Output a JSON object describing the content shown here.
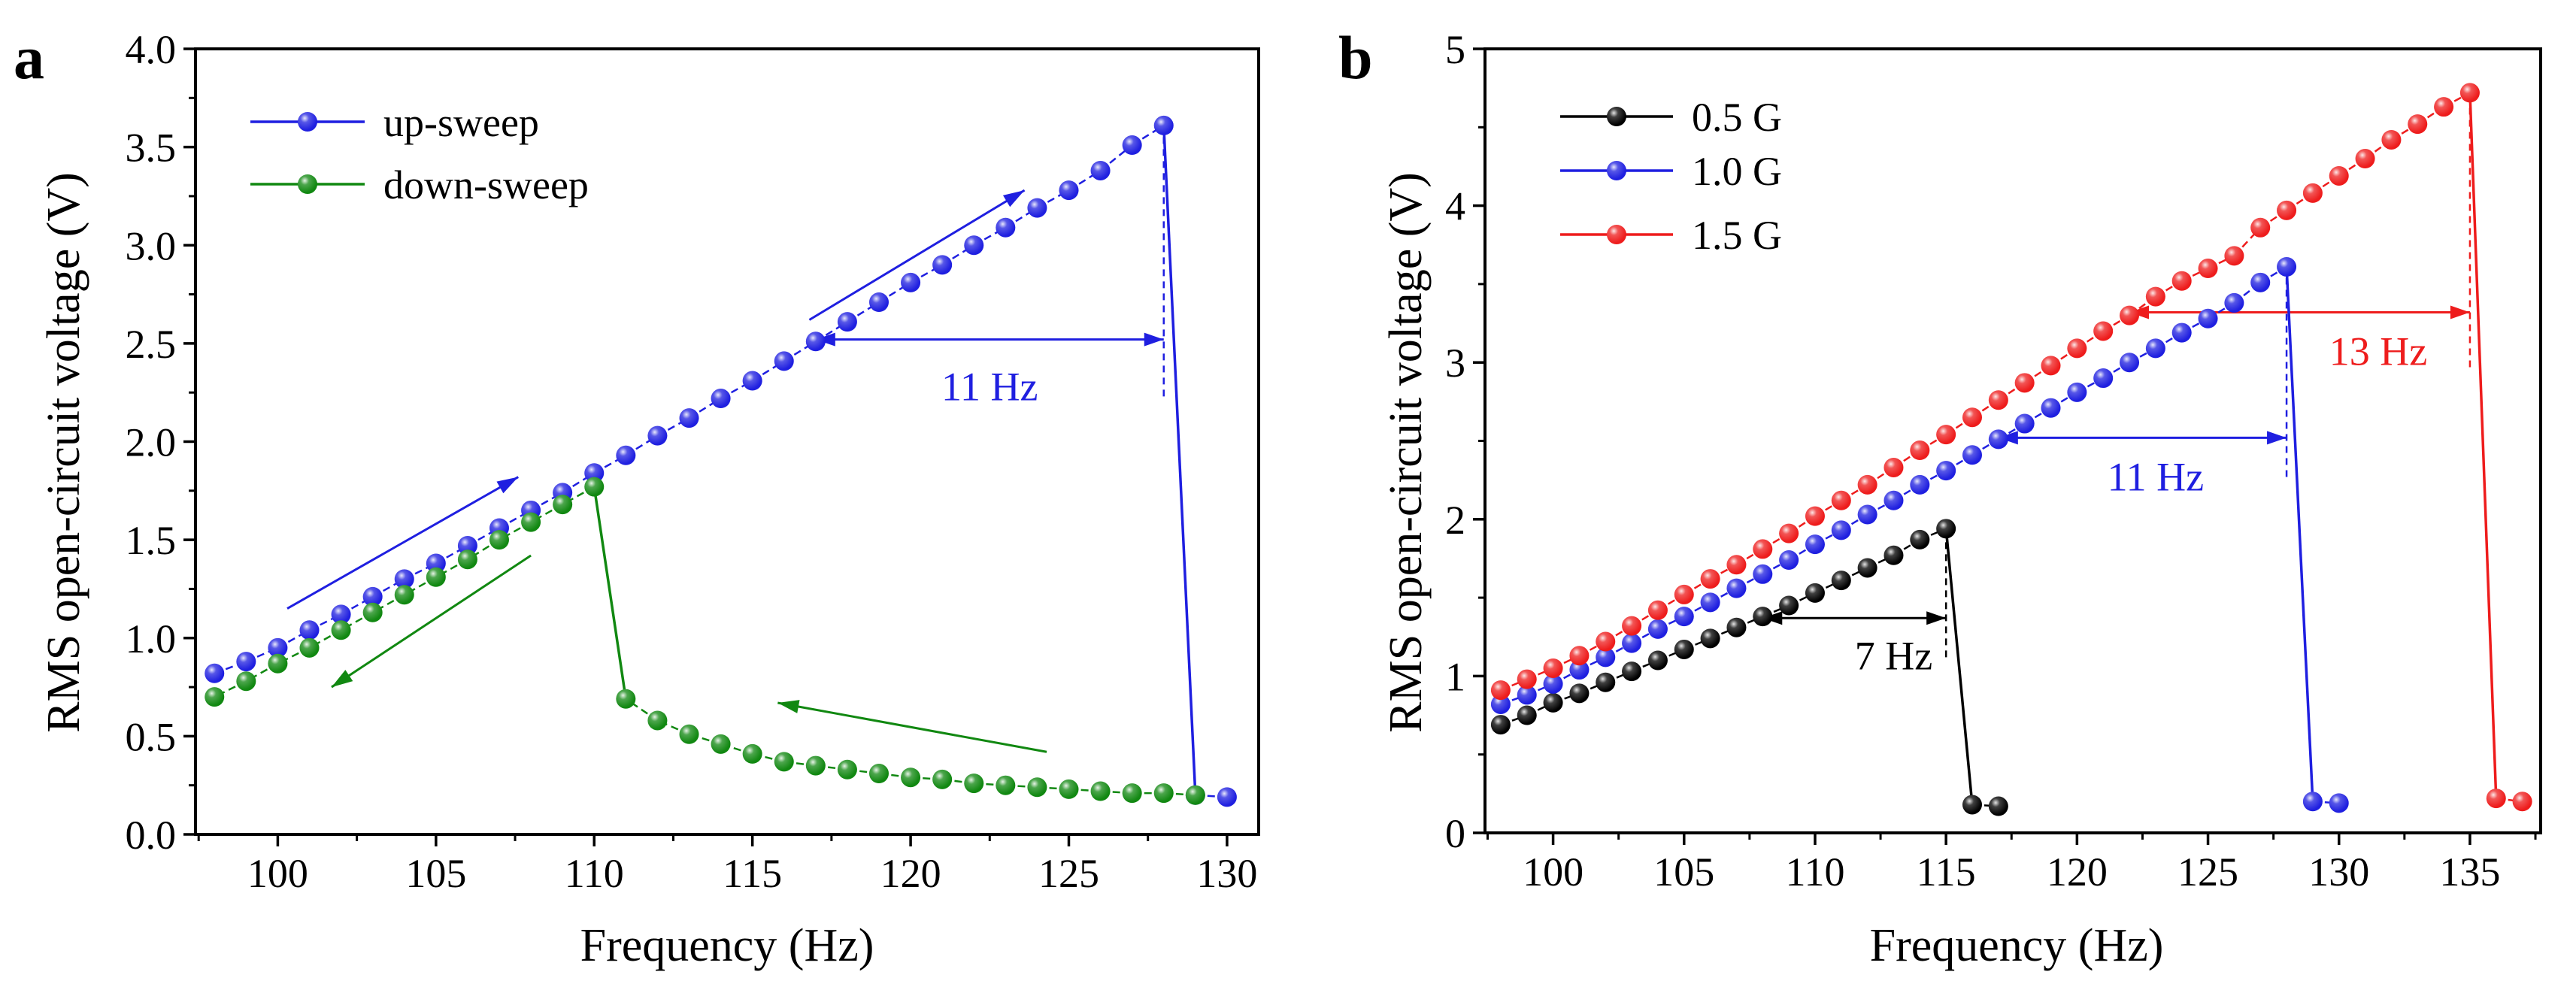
{
  "chart_data": [
    {
      "panel_label": "a",
      "type": "line",
      "title": "",
      "xlabel": "Frequency (Hz)",
      "ylabel": "RMS open-circuit voltage (V)",
      "xlim": [
        97.4,
        131.0
      ],
      "ylim": [
        0.0,
        4.0
      ],
      "xticks": [
        100,
        105,
        110,
        115,
        120,
        125,
        130
      ],
      "yticks": [
        0.0,
        0.5,
        1.0,
        1.5,
        2.0,
        2.5,
        3.0,
        3.5,
        4.0
      ],
      "ytick_labels": [
        "0.0",
        "0.5",
        "1.0",
        "1.5",
        "2.0",
        "2.5",
        "3.0",
        "3.5",
        "4.0"
      ],
      "legend_position": "top-left",
      "series": [
        {
          "name": "up-sweep",
          "color": "#1f1fe0",
          "x": [
            98,
            99,
            100,
            101,
            102,
            103,
            104,
            105,
            106,
            107,
            108,
            109,
            110,
            111,
            112,
            113,
            114,
            115,
            116,
            117,
            118,
            119,
            120,
            121,
            122,
            123,
            124,
            125,
            126,
            127,
            128,
            129,
            130
          ],
          "y": [
            0.82,
            0.88,
            0.95,
            1.04,
            1.12,
            1.21,
            1.3,
            1.38,
            1.47,
            1.56,
            1.65,
            1.74,
            1.84,
            1.93,
            2.03,
            2.12,
            2.22,
            2.31,
            2.41,
            2.51,
            2.61,
            2.71,
            2.81,
            2.9,
            3.0,
            3.09,
            3.19,
            3.28,
            3.38,
            3.51,
            3.61,
            0.2,
            0.19
          ]
        },
        {
          "name": "down-sweep",
          "color": "#118811",
          "x": [
            129,
            128,
            127,
            126,
            125,
            124,
            123,
            122,
            121,
            120,
            119,
            118,
            117,
            116,
            115,
            114,
            113,
            112,
            111,
            110,
            109,
            108,
            107,
            106,
            105,
            104,
            103,
            102,
            101,
            100,
            99,
            98
          ],
          "y": [
            0.2,
            0.21,
            0.21,
            0.22,
            0.23,
            0.24,
            0.25,
            0.26,
            0.28,
            0.29,
            0.31,
            0.33,
            0.35,
            0.37,
            0.41,
            0.46,
            0.51,
            0.58,
            0.69,
            1.77,
            1.68,
            1.59,
            1.5,
            1.4,
            1.31,
            1.22,
            1.13,
            1.04,
            0.95,
            0.87,
            0.78,
            0.7
          ]
        }
      ],
      "annotations": [
        {
          "text": "11 Hz",
          "color": "#1f1fe0",
          "x_from": 117,
          "x_to": 128,
          "y": 2.52,
          "label_x": 122.5,
          "label_y": 2.28,
          "dashed_x": 128,
          "dashed_y": [
            2.23,
            3.6
          ]
        }
      ],
      "arrows": [
        {
          "color": "#1f1fe0",
          "from": [
            100.3,
            1.15
          ],
          "to": [
            107.6,
            1.82
          ]
        },
        {
          "color": "#1f1fe0",
          "from": [
            116.8,
            2.62
          ],
          "to": [
            123.6,
            3.28
          ]
        },
        {
          "color": "#118811",
          "from": [
            108.0,
            1.42
          ],
          "to": [
            101.7,
            0.75
          ]
        },
        {
          "color": "#118811",
          "from": [
            124.3,
            0.42
          ],
          "to": [
            115.8,
            0.67
          ]
        }
      ]
    },
    {
      "panel_label": "b",
      "type": "line",
      "title": "",
      "xlabel": "Frequency (Hz)",
      "ylabel": "RMS open-circuit voltage (V)",
      "xlim": [
        97.4,
        137.7
      ],
      "ylim": [
        0,
        5
      ],
      "xticks": [
        100,
        105,
        110,
        115,
        120,
        125,
        130,
        135
      ],
      "yticks": [
        0,
        1,
        2,
        3,
        4,
        5
      ],
      "ytick_labels": [
        "0",
        "1",
        "2",
        "3",
        "4",
        "5"
      ],
      "legend_position": "top-left",
      "series": [
        {
          "name": "0.5 G",
          "color": "#000000",
          "x": [
            98,
            99,
            100,
            101,
            102,
            103,
            104,
            105,
            106,
            107,
            108,
            109,
            110,
            111,
            112,
            113,
            114,
            115,
            116,
            117
          ],
          "y": [
            0.69,
            0.75,
            0.83,
            0.89,
            0.96,
            1.03,
            1.1,
            1.17,
            1.24,
            1.31,
            1.38,
            1.45,
            1.53,
            1.61,
            1.69,
            1.77,
            1.87,
            1.94,
            0.18,
            0.17
          ]
        },
        {
          "name": "1.0 G",
          "color": "#1f1fe0",
          "x": [
            98,
            99,
            100,
            101,
            102,
            103,
            104,
            105,
            106,
            107,
            108,
            109,
            110,
            111,
            112,
            113,
            114,
            115,
            116,
            117,
            118,
            119,
            120,
            121,
            122,
            123,
            124,
            125,
            126,
            127,
            128,
            129,
            130
          ],
          "y": [
            0.82,
            0.88,
            0.95,
            1.04,
            1.12,
            1.21,
            1.3,
            1.38,
            1.47,
            1.56,
            1.65,
            1.74,
            1.84,
            1.93,
            2.03,
            2.12,
            2.22,
            2.31,
            2.41,
            2.51,
            2.61,
            2.71,
            2.81,
            2.9,
            3.0,
            3.09,
            3.19,
            3.28,
            3.38,
            3.51,
            3.61,
            0.2,
            0.19
          ]
        },
        {
          "name": "1.5 G",
          "color": "#ee1c1c",
          "x": [
            98,
            99,
            100,
            101,
            102,
            103,
            104,
            105,
            106,
            107,
            108,
            109,
            110,
            111,
            112,
            113,
            114,
            115,
            116,
            117,
            118,
            119,
            120,
            121,
            122,
            123,
            124,
            125,
            126,
            127,
            128,
            129,
            130,
            131,
            132,
            133,
            134,
            135,
            136,
            137
          ],
          "y": [
            0.91,
            0.98,
            1.05,
            1.13,
            1.22,
            1.32,
            1.42,
            1.52,
            1.62,
            1.71,
            1.81,
            1.91,
            2.02,
            2.12,
            2.22,
            2.33,
            2.44,
            2.54,
            2.65,
            2.76,
            2.87,
            2.98,
            3.09,
            3.2,
            3.3,
            3.42,
            3.52,
            3.6,
            3.68,
            3.86,
            3.97,
            4.08,
            4.19,
            4.3,
            4.42,
            4.52,
            4.63,
            4.72,
            0.22,
            0.2
          ]
        }
      ],
      "annotations": [
        {
          "text": "7 Hz",
          "color": "#000000",
          "x_from": 108,
          "x_to": 115,
          "y": 1.37,
          "label_x": 113.0,
          "label_y": 1.13,
          "dashed_x": 115,
          "dashed_y": [
            1.12,
            1.94
          ]
        },
        {
          "text": "11 Hz",
          "color": "#1f1fe0",
          "x_from": 117,
          "x_to": 128,
          "y": 2.52,
          "label_x": 123.0,
          "label_y": 2.27,
          "dashed_x": 128,
          "dashed_y": [
            2.27,
            3.6
          ]
        },
        {
          "text": "13 Hz",
          "color": "#ee1c1c",
          "x_from": 122,
          "x_to": 135,
          "y": 3.32,
          "label_x": 131.5,
          "label_y": 3.07,
          "dashed_x": 135,
          "dashed_y": [
            2.97,
            4.72
          ]
        }
      ],
      "arrows": []
    }
  ]
}
